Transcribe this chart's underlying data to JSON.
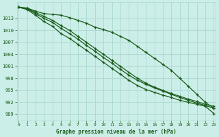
{
  "title": "Graphe pression niveau de la mer (hPa)",
  "bg_color": "#cceee8",
  "grid_color": "#aad8d0",
  "line_color": "#1a5c1a",
  "x_ticks": [
    0,
    1,
    2,
    3,
    4,
    5,
    6,
    7,
    8,
    9,
    10,
    11,
    12,
    13,
    14,
    15,
    16,
    17,
    18,
    19,
    20,
    21,
    22,
    23
  ],
  "y_ticks": [
    989,
    992,
    995,
    998,
    1001,
    1004,
    1007,
    1010,
    1013
  ],
  "ylim": [
    987.5,
    1017.0
  ],
  "xlim": [
    -0.2,
    23.2
  ],
  "lines": [
    [
      1015.8,
      1015.6,
      1014.8,
      1014.2,
      1014.0,
      1013.8,
      1013.2,
      1012.5,
      1011.8,
      1010.8,
      1010.2,
      1009.5,
      1008.5,
      1007.5,
      1006.0,
      1004.5,
      1003.0,
      1001.5,
      1000.0,
      998.0,
      996.0,
      994.0,
      992.0,
      990.5
    ],
    [
      1015.8,
      1015.5,
      1014.5,
      1013.5,
      1012.5,
      1011.2,
      1010.0,
      1008.5,
      1007.0,
      1005.5,
      1004.0,
      1002.5,
      1001.0,
      999.5,
      998.0,
      996.8,
      995.8,
      995.0,
      994.2,
      993.5,
      992.8,
      992.2,
      991.5,
      991.0
    ],
    [
      1015.8,
      1015.4,
      1014.2,
      1013.0,
      1012.0,
      1010.5,
      1009.2,
      1007.8,
      1006.2,
      1004.8,
      1003.2,
      1001.8,
      1000.2,
      998.8,
      997.5,
      996.5,
      995.6,
      994.8,
      994.0,
      993.2,
      992.5,
      991.8,
      991.2,
      990.5
    ],
    [
      1015.8,
      1015.2,
      1013.8,
      1012.2,
      1011.0,
      1009.2,
      1008.0,
      1006.5,
      1005.0,
      1003.5,
      1002.0,
      1000.5,
      999.0,
      997.5,
      996.2,
      995.2,
      994.5,
      993.8,
      993.2,
      992.5,
      992.0,
      991.5,
      991.0,
      989.2
    ]
  ]
}
